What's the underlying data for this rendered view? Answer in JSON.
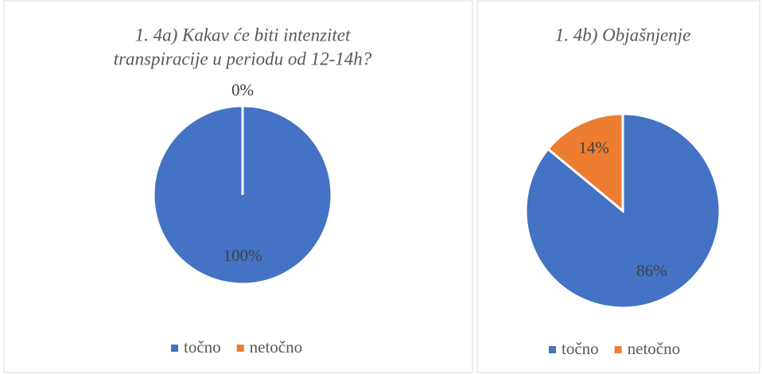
{
  "chart_data": [
    {
      "type": "pie",
      "title": [
        "1. 4a) Kakav će biti intenzitet",
        "transpiracije u periodu od 12-14h?"
      ],
      "categories": [
        "točno",
        "netočno"
      ],
      "values": [
        100,
        0
      ],
      "value_labels": [
        "100%",
        "0%"
      ],
      "colors": [
        "#4472c4",
        "#ed7d31"
      ]
    },
    {
      "type": "pie",
      "title": [
        "1. 4b) Objašnjenje"
      ],
      "categories": [
        "točno",
        "netočno"
      ],
      "values": [
        86,
        14
      ],
      "value_labels": [
        "86%",
        "14%"
      ],
      "colors": [
        "#4472c4",
        "#ed7d31"
      ]
    }
  ]
}
